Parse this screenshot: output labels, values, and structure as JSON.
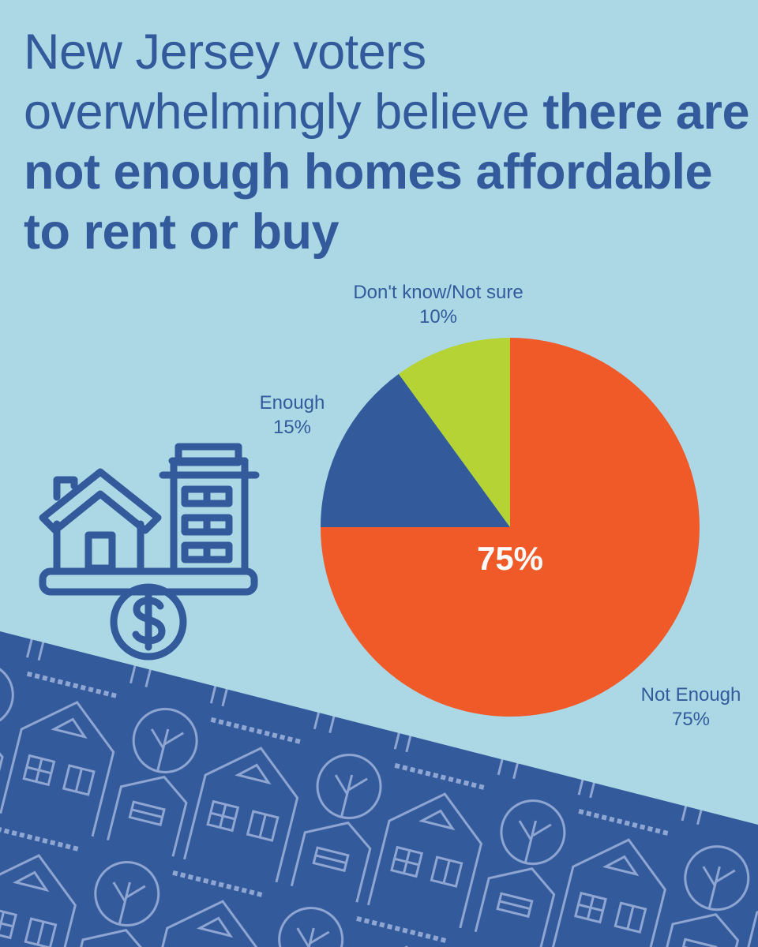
{
  "title": {
    "regular": "New Jersey voters overwhelmingly believe ",
    "bold": "there are not enough homes affordable to rent or buy"
  },
  "colors": {
    "background": "#acd8e6",
    "text": "#335a9b",
    "not_enough": "#f05a28",
    "enough": "#335a9b",
    "dont_know": "#b5d334",
    "pattern_line": "#8fa6d3"
  },
  "icons": [
    "house-icon",
    "apartment-building-icon",
    "dollar-coin-icon",
    "houses-pattern"
  ],
  "chart_data": {
    "type": "pie",
    "start": "12 o'clock, clockwise",
    "slices": [
      {
        "label": "Not Enough",
        "value": 75,
        "value_label": "75%",
        "color": "#f05a28"
      },
      {
        "label": "Enough",
        "value": 15,
        "value_label": "15%",
        "color": "#335a9b"
      },
      {
        "label": "Don't know/Not sure",
        "value": 10,
        "value_label": "10%",
        "color": "#b5d334"
      }
    ],
    "center_label": "75%"
  }
}
